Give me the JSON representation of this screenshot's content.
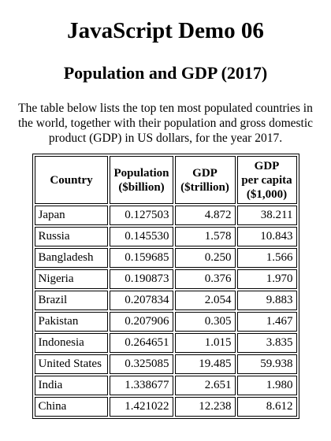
{
  "title": "JavaScript Demo 06",
  "subtitle": "Population and GDP (2017)",
  "intro": "The table below lists the top ten most populated countries in the world, together with their population and gross domestic product (GDP) in US dollars, for the year 2017.",
  "table": {
    "headers": [
      [
        "Country"
      ],
      [
        "Population",
        "($billion)"
      ],
      [
        "GDP",
        "($trillion)"
      ],
      [
        "GDP",
        "per capita",
        "($1,000)"
      ]
    ],
    "rows": [
      [
        "Japan",
        "0.127503",
        "4.872",
        "38.211"
      ],
      [
        "Russia",
        "0.145530",
        "1.578",
        "10.843"
      ],
      [
        "Bangladesh",
        "0.159685",
        "0.250",
        "1.566"
      ],
      [
        "Nigeria",
        "0.190873",
        "0.376",
        "1.970"
      ],
      [
        "Brazil",
        "0.207834",
        "2.054",
        "9.883"
      ],
      [
        "Pakistan",
        "0.207906",
        "0.305",
        "1.467"
      ],
      [
        "Indonesia",
        "0.264651",
        "1.015",
        "3.835"
      ],
      [
        "United States",
        "0.325085",
        "19.485",
        "59.938"
      ],
      [
        "India",
        "1.338677",
        "2.651",
        "1.980"
      ],
      [
        "China",
        "1.421022",
        "12.238",
        "8.612"
      ]
    ]
  }
}
